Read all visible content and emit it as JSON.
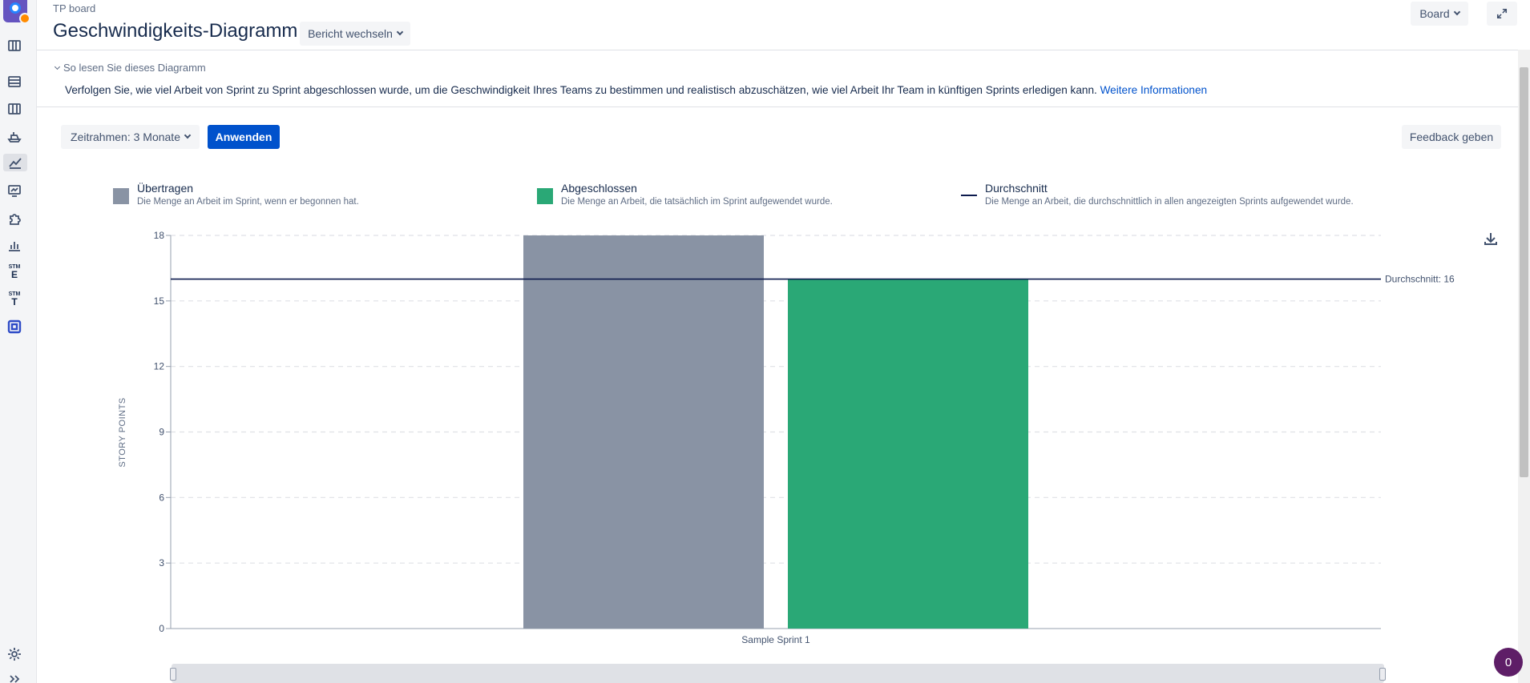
{
  "header": {
    "project": "TP board",
    "title": "Geschwindigkeits-Diagramm",
    "switch_report": "Bericht wechseln",
    "board_button": "Board"
  },
  "info": {
    "toggle_label": "So lesen Sie dieses Diagramm",
    "text": "Verfolgen Sie, wie viel Arbeit von Sprint zu Sprint abgeschlossen wurde, um die Geschwindigkeit Ihres Teams zu bestimmen und realistisch abzuschätzen, wie viel Arbeit Ihr Team in künftigen Sprints erledigen kann.",
    "link": "Weitere Informationen"
  },
  "controls": {
    "timeframe": "Zeitrahmen: 3 Monate",
    "apply": "Anwenden",
    "feedback": "Feedback geben"
  },
  "legend": [
    {
      "title": "Übertragen",
      "desc": "Die Menge an Arbeit im Sprint, wenn er begonnen hat.",
      "color": "#8993a4"
    },
    {
      "title": "Abgeschlossen",
      "desc": "Die Menge an Arbeit, die tatsächlich im Sprint aufgewendet wurde.",
      "color": "#2aa876"
    },
    {
      "title": "Durchschnitt",
      "desc": "Die Menge an Arbeit, die durchschnittlich in allen angezeigten Sprints aufgewendet wurde.",
      "color": "#0c1a4d"
    }
  ],
  "chart_data": {
    "type": "bar",
    "categories": [
      "Sample Sprint 1"
    ],
    "series": [
      {
        "name": "Übertragen",
        "values": [
          18
        ],
        "color": "#8993a4"
      },
      {
        "name": "Abgeschlossen",
        "values": [
          16
        ],
        "color": "#2aa876"
      }
    ],
    "average": 16,
    "average_label": "Durchschnitt: 16",
    "ylabel": "STORY POINTS",
    "ylim": [
      0,
      18
    ],
    "yticks": [
      "0",
      "3",
      "6",
      "9",
      "12",
      "15",
      "18"
    ],
    "grid": true
  },
  "help_badge": "0"
}
